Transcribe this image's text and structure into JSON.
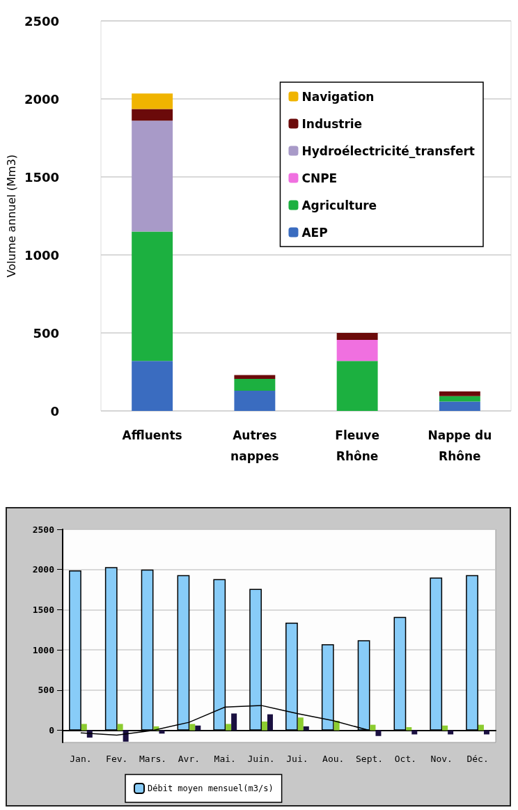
{
  "chart_data": [
    {
      "type": "bar",
      "stacked": true,
      "ylabel": "Volume annuel (Mm3)",
      "categories": [
        "Affluents",
        "Autres\nnappes",
        "Fleuve\nRhône",
        "Nappe du\nRhône"
      ],
      "ylim": [
        0,
        2500
      ],
      "yticks": [
        0,
        500,
        1000,
        1500,
        2000,
        2500
      ],
      "grid": "y",
      "legend": "top right",
      "series": [
        {
          "name": "AEP",
          "color": "#3a6cc0",
          "values": [
            320,
            130,
            0,
            60
          ]
        },
        {
          "name": "Agriculture",
          "color": "#1cb040",
          "values": [
            830,
            75,
            320,
            35
          ]
        },
        {
          "name": "CNPE",
          "color": "#f070e0",
          "values": [
            0,
            0,
            135,
            0
          ]
        },
        {
          "name": "Hydroélectricité_transfert",
          "color": "#a89ac8",
          "values": [
            710,
            0,
            0,
            0
          ]
        },
        {
          "name": "Industrie",
          "color": "#6b0a0a",
          "values": [
            75,
            25,
            45,
            30
          ]
        },
        {
          "name": "Navigation",
          "color": "#f0b400",
          "values": [
            100,
            0,
            0,
            0
          ]
        }
      ]
    },
    {
      "type": "bar",
      "categories": [
        "Jan.",
        "Fev.",
        "Mars.",
        "Avr.",
        "Mai.",
        "Juin.",
        "Jui.",
        "Aou.",
        "Sept.",
        "Oct.",
        "Nov.",
        "Déc."
      ],
      "ylim": [
        -150,
        2500
      ],
      "yticks": [
        0,
        500,
        1000,
        1500,
        2000,
        2500
      ],
      "grid": "y",
      "legend": "bottom left",
      "series": [
        {
          "name": "Débit moyen mensuel(m3/s)",
          "color": "#88ccf8",
          "values": [
            1990,
            2030,
            2000,
            1930,
            1880,
            1760,
            1340,
            1070,
            1120,
            1410,
            1900,
            1930
          ]
        },
        {
          "color": "#8ccc30",
          "values": [
            80,
            80,
            50,
            80,
            80,
            110,
            160,
            120,
            70,
            40,
            60,
            70
          ]
        },
        {
          "color": "#1a1040",
          "values": [
            -90,
            -140,
            -40,
            60,
            210,
            200,
            50,
            null,
            -70,
            -50,
            -50,
            -50
          ]
        },
        {
          "type": "line",
          "color": "#000000",
          "marker": "none",
          "values": [
            -30,
            -60,
            0,
            100,
            290,
            310,
            210,
            120,
            0,
            null,
            null,
            null
          ]
        }
      ]
    }
  ]
}
